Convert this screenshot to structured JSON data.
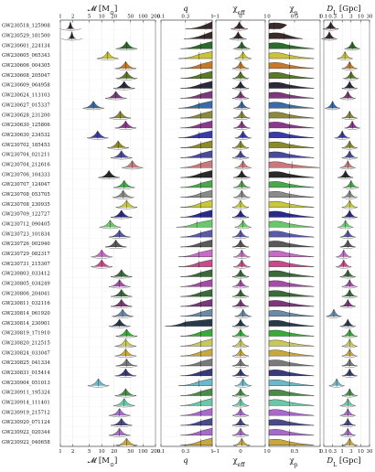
{
  "chart_data": {
    "type": "violin",
    "rows": [
      "GW230518_125908",
      "GW230529_181500",
      "GW230601_224134",
      "GW230605_065343",
      "GW230606_004305",
      "GW230608_205047",
      "GW230609_064958",
      "GW230624_113103",
      "GW230627_015337",
      "GW230628_231200",
      "GW230630_125806",
      "GW230630_234532",
      "GW230702_185453",
      "GW230704_021211",
      "GW230704_212616",
      "GW230706_104333",
      "GW230707_124047",
      "GW230708_053705",
      "GW230708_230935",
      "GW230709_122727",
      "GW230712_090405",
      "GW230723_101834",
      "GW230726_002940",
      "GW230729_082317",
      "GW230731_215307",
      "GW230803_033412",
      "GW230805_034249",
      "GW230806_204041",
      "GW230811_032116",
      "GW230814_061920",
      "GW230814_230901",
      "GW230819_171910",
      "GW230820_212515",
      "GW230824_033047",
      "GW230825_041334",
      "GW230831_015414",
      "GW230904_051013",
      "GW230911_195324",
      "GW230914_111401",
      "GW230919_215712",
      "GW230920_071124",
      "GW230922_020344",
      "GW230922_040658"
    ],
    "colors": [
      "#3a2a2a",
      "#3a2a2a",
      "#2e6b2e",
      "#c9c23a",
      "#c47a2a",
      "#5a7a2a",
      "#2a2a3a",
      "#7a3a7a",
      "#3a6aa8",
      "#8a8a3a",
      "#8a3a8a",
      "#3a3aa8",
      "#8a8a2a",
      "#4a4a9a",
      "#c87a7a",
      "#2a2a2a",
      "#4aa84a",
      "#8a8a8a",
      "#c8c83a",
      "#2a2a8a",
      "#6ac86a",
      "#5a5aa8",
      "#5a5a5a",
      "#c86ac8",
      "#c84a8a",
      "#3a6a3a",
      "#a84aa8",
      "#3a6a3a",
      "#7a3a7a",
      "#6a8aa8",
      "#2a3a4a",
      "#3aa83a",
      "#c8c85a",
      "#c8a83a",
      "#7a7a7a",
      "#3a3a7a",
      "#6ab8c8",
      "#4a8a4a",
      "#6ac8a8",
      "#a86ac8",
      "#4a4a8a",
      "#a86ac8",
      "#c8a83a"
    ],
    "mc_label": "𝓜 [M",
    "mc_sub": "⊙",
    "mc_label_end": "]",
    "q_label": "q",
    "chi_eff_label": "χ",
    "chi_eff_sub": "eff",
    "chi_p_label": "χ",
    "chi_p_sub": "p",
    "dl_label": "D",
    "dl_sub": "L",
    "dl_unit": " [Gpc]",
    "mc_ticks": [
      "1",
      "2",
      "5",
      "10",
      "20",
      "50",
      "100",
      "200"
    ],
    "q_ticks": [
      "0.1",
      "0.3",
      "1"
    ],
    "chi_eff_ticks": [
      "−1",
      "0",
      "1"
    ],
    "chi_p_ticks": [
      "0",
      "0.5",
      "1"
    ],
    "dl_ticks": [
      "0.1",
      "0.3",
      "1",
      "3",
      "10",
      "30"
    ],
    "mc_median": [
      1.75,
      1.9,
      40,
      14,
      38,
      40,
      35,
      22,
      6.3,
      28,
      38,
      8,
      25,
      30,
      55,
      15,
      35,
      33,
      40,
      30,
      16,
      27,
      22,
      10,
      10,
      30,
      27,
      30,
      30,
      32,
      27,
      40,
      38,
      38,
      40,
      38,
      8.3,
      38,
      35,
      27,
      30,
      27,
      40
    ],
    "q_median": [
      0.75,
      0.7,
      0.6,
      0.55,
      0.6,
      0.6,
      0.6,
      0.6,
      0.55,
      0.6,
      0.6,
      0.55,
      0.6,
      0.6,
      0.6,
      0.6,
      0.6,
      0.6,
      0.6,
      0.6,
      0.5,
      0.6,
      0.6,
      0.55,
      0.55,
      0.6,
      0.6,
      0.6,
      0.6,
      0.6,
      0.3,
      0.6,
      0.6,
      0.6,
      0.6,
      0.6,
      0.55,
      0.6,
      0.6,
      0.6,
      0.6,
      0.6,
      0.6
    ],
    "chi_eff_median": [
      -0.05,
      -0.1,
      0.05,
      0.1,
      0.0,
      0.0,
      0.0,
      0.0,
      0.05,
      0.05,
      0.05,
      0.1,
      0.0,
      0.0,
      0.1,
      0.05,
      0.05,
      0.05,
      0.0,
      0.0,
      0.1,
      0.0,
      0.0,
      0.05,
      0.05,
      0.0,
      0.0,
      0.0,
      0.0,
      0.1,
      0.0,
      0.0,
      0.0,
      0.0,
      0.0,
      0.0,
      0.1,
      0.0,
      0.0,
      0.0,
      0.0,
      0.0,
      0.05
    ],
    "chi_p_median": [
      0.1,
      0.3,
      0.4,
      0.4,
      0.4,
      0.4,
      0.4,
      0.4,
      0.4,
      0.4,
      0.4,
      0.4,
      0.4,
      0.4,
      0.45,
      0.4,
      0.4,
      0.4,
      0.4,
      0.4,
      0.4,
      0.4,
      0.4,
      0.4,
      0.4,
      0.4,
      0.4,
      0.4,
      0.4,
      0.4,
      0.4,
      0.4,
      0.4,
      0.4,
      0.4,
      0.4,
      0.4,
      0.4,
      0.4,
      0.4,
      0.4,
      0.4,
      0.4
    ],
    "dl_median": [
      0.24,
      0.2,
      3.5,
      1.4,
      2.5,
      3.0,
      2.5,
      2.0,
      0.3,
      2.5,
      3.5,
      1.0,
      2.5,
      2.5,
      2.0,
      1.5,
      3.0,
      2.5,
      2.5,
      2.5,
      1.5,
      2.0,
      2.0,
      1.2,
      1.2,
      2.0,
      2.5,
      2.5,
      2.0,
      0.35,
      2.0,
      2.5,
      2.5,
      2.5,
      2.5,
      2.5,
      0.5,
      2.5,
      2.0,
      2.0,
      2.0,
      2.0,
      2.5
    ]
  }
}
